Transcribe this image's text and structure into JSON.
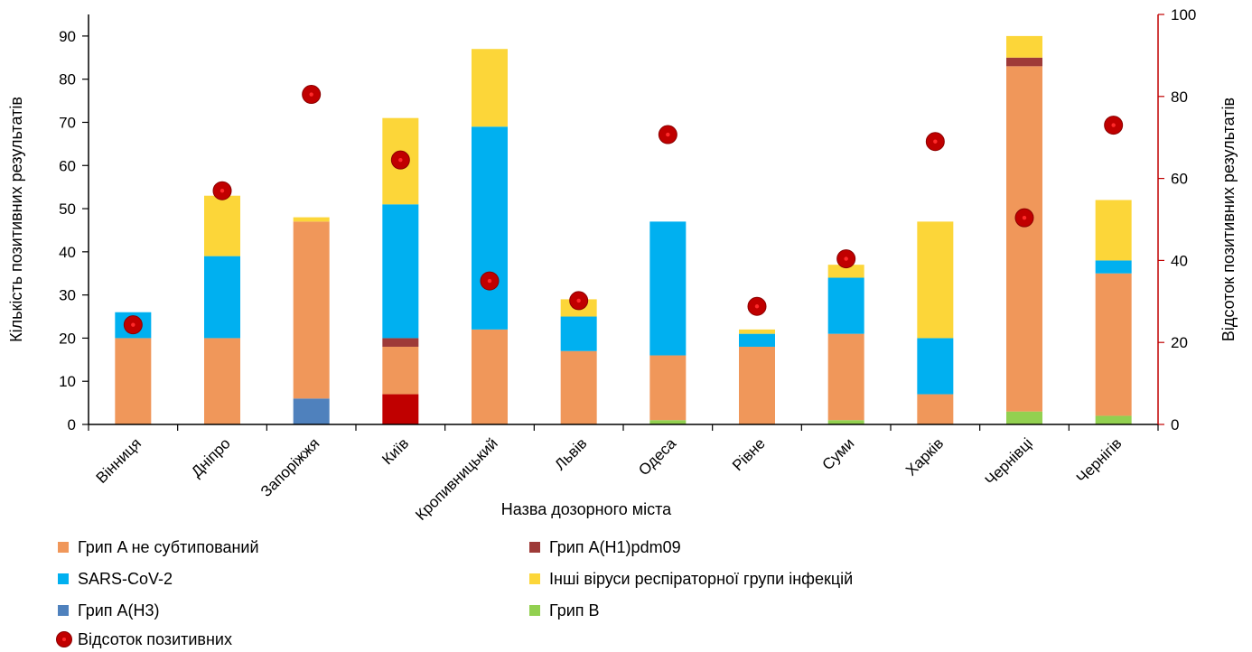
{
  "chart_data": {
    "type": "bar",
    "stacked": true,
    "categories": [
      "Вінниця",
      "Дніпро",
      "Запоріжжя",
      "Київ",
      "Кропивницький",
      "Львів",
      "Одеса",
      "Рівне",
      "Суми",
      "Харків",
      "Чернівці",
      "Чернігів"
    ],
    "xlabel": "Назва  дозорного міста",
    "ylabel": "Кількість позитивних результатів",
    "y2label": "Відсоток позитивних результатів",
    "ylim": [
      0,
      95
    ],
    "yticks": [
      0,
      10,
      20,
      30,
      40,
      50,
      60,
      70,
      80,
      90
    ],
    "y2lim": [
      0,
      100
    ],
    "y2ticks": [
      0,
      20,
      40,
      60,
      80,
      100
    ],
    "series": [
      {
        "name": "Грип B",
        "color": "#92d050",
        "values": [
          0,
          0,
          0,
          0,
          0,
          0,
          1,
          0,
          1,
          0,
          3,
          2
        ]
      },
      {
        "name": "Грип A(H3)",
        "color": "#4f81bd",
        "values": [
          0,
          0,
          6,
          0,
          0,
          0,
          0,
          0,
          0,
          0,
          0,
          0
        ]
      },
      {
        "name": "Грип A(H1)",
        "color": "#c00000",
        "legend": false,
        "values": [
          0,
          0,
          0,
          7,
          0,
          0,
          0,
          0,
          0,
          0,
          0,
          0
        ]
      },
      {
        "name": "Грип A не субтипований",
        "color": "#f0975a",
        "values": [
          20,
          20,
          41,
          11,
          22,
          17,
          15,
          18,
          20,
          7,
          80,
          33
        ]
      },
      {
        "name": "Грип A(H1)pdm09",
        "color": "#9e3a38",
        "values": [
          0,
          0,
          0,
          2,
          0,
          0,
          0,
          0,
          0,
          0,
          2,
          0
        ]
      },
      {
        "name": "SARS-CoV-2",
        "color": "#00b0f0",
        "values": [
          6,
          19,
          0,
          31,
          47,
          8,
          31,
          3,
          13,
          13,
          0,
          3
        ]
      },
      {
        "name": "Інші віруси респіраторної групи інфекцій",
        "color": "#fcd639",
        "values": [
          0,
          14,
          1,
          20,
          18,
          4,
          0,
          1,
          3,
          27,
          5,
          14
        ]
      }
    ],
    "line": {
      "name": "Відсоток позитивних",
      "color": "#c00000",
      "values": [
        24.3,
        57,
        80.5,
        64.5,
        35,
        30.2,
        70.7,
        28.8,
        40.4,
        69,
        50.4,
        73
      ]
    },
    "legend": {
      "placement": "bottom",
      "items": [
        {
          "label": "Грип A не субтипований",
          "color": "#f0975a",
          "kind": "square"
        },
        {
          "label": "Грип A(H1)pdm09",
          "color": "#9e3a38",
          "kind": "square"
        },
        {
          "label": "SARS-CoV-2",
          "color": "#00b0f0",
          "kind": "square"
        },
        {
          "label": "Інші віруси респіраторної групи інфекцій",
          "color": "#fcd639",
          "kind": "square"
        },
        {
          "label": "Грип A(H3)",
          "color": "#4f81bd",
          "kind": "square"
        },
        {
          "label": "Грип B",
          "color": "#92d050",
          "kind": "square"
        },
        {
          "label": "Відсоток позитивних",
          "color": "#c00000",
          "kind": "marker"
        }
      ]
    },
    "grid": false,
    "colors": {
      "axis": "#000000",
      "secondary_axis": "#c00000"
    }
  }
}
